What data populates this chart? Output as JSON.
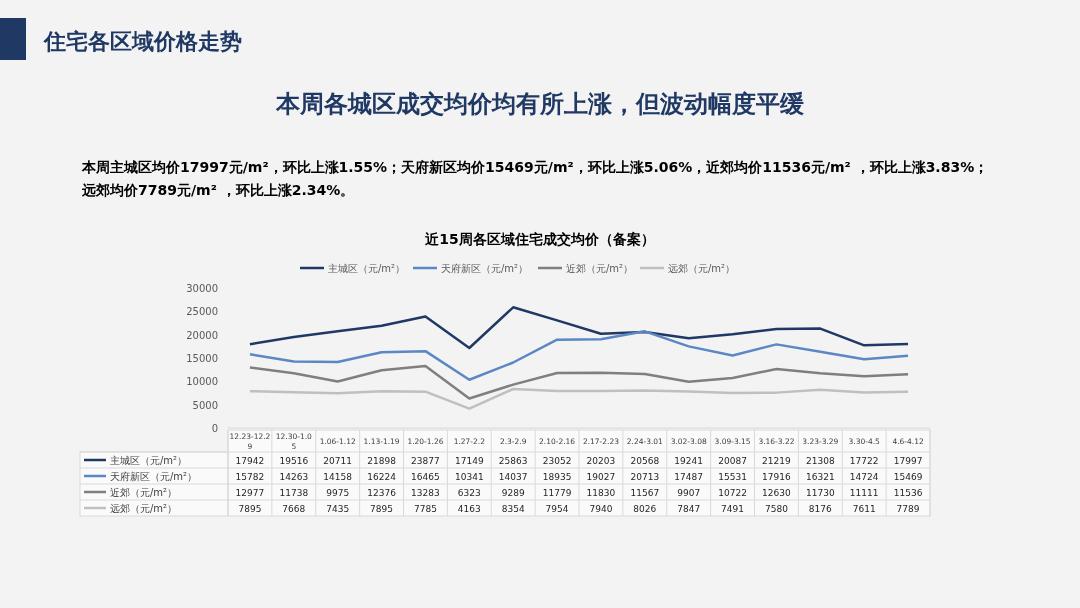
{
  "chart_data": {
    "type": "line",
    "title": "近15周各区域住宅成交均价（备案）",
    "annotations": [
      "住宅各区域价格走势",
      "本周各城区成交均价均有所上涨，但波动幅度平缓",
      "本周主城区均价17997元/m²，环比上涨1.55%；天府新区均价15469元/m²，环比上涨5.06%，近郊均价11536元/m² ，环比上涨3.83%；远郊均价7789元/m² ，环比上涨2.34%。"
    ],
    "categories": [
      "12.23-12.29",
      "12.30-1.05",
      "1.06-1.12",
      "1.13-1.19",
      "1.20-1.26",
      "1.27-2.2",
      "2.3-2.9",
      "2.10-2.16",
      "2.17-2.23",
      "2.24-3.01",
      "3.02-3.08",
      "3.09-3.15",
      "3.16-3.22",
      "3.23-3.29",
      "3.30-4.5",
      "4.6-4.12"
    ],
    "series": [
      {
        "name": "主城区（元/m²）",
        "color": "#203864",
        "values": [
          17942,
          19516,
          20711,
          21898,
          23877,
          17149,
          25863,
          23052,
          20203,
          20568,
          19241,
          20087,
          21219,
          21308,
          17722,
          17997
        ]
      },
      {
        "name": "天府新区（元/m²）",
        "color": "#5b87c5",
        "values": [
          15782,
          14263,
          14158,
          16224,
          16465,
          10341,
          14037,
          18935,
          19027,
          20713,
          17487,
          15531,
          17916,
          16321,
          14724,
          15469
        ]
      },
      {
        "name": "近郊（元/m²）",
        "color": "#7f7f7f",
        "values": [
          12977,
          11738,
          9975,
          12376,
          13283,
          6323,
          9289,
          11779,
          11830,
          11567,
          9907,
          10722,
          12630,
          11730,
          11111,
          11536
        ]
      },
      {
        "name": "远郊（元/m²）",
        "color": "#bfbfbf",
        "values": [
          7895,
          7668,
          7435,
          7895,
          7785,
          4163,
          8354,
          7954,
          7940,
          8026,
          7847,
          7491,
          7580,
          8176,
          7611,
          7789
        ]
      }
    ],
    "ylim": [
      0,
      30000
    ],
    "yticks": [
      0,
      5000,
      10000,
      15000,
      20000,
      25000,
      30000
    ],
    "grid": false,
    "legend": "top",
    "data_labels": true,
    "line_style": "solid",
    "marker": "none"
  }
}
